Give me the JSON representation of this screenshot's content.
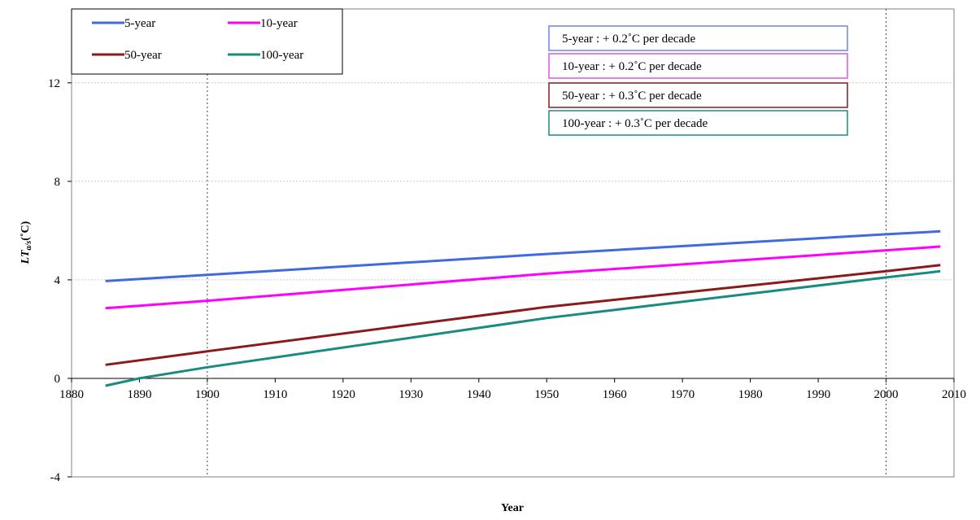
{
  "chart_data": {
    "type": "line",
    "title": "",
    "xlabel": "Year",
    "ylabel_main": "LT",
    "ylabel_sub": "a/s",
    "ylabel_unit": "(˚C)",
    "xlim": [
      1880,
      2010
    ],
    "ylim": [
      -4,
      15
    ],
    "x_ticks": [
      1880,
      1890,
      1900,
      1910,
      1920,
      1930,
      1940,
      1950,
      1960,
      1970,
      1980,
      1990,
      2000,
      2010
    ],
    "x_tick_labels": [
      "1880",
      "1890",
      "1900",
      "1910",
      "1920",
      "1930",
      "1940",
      "1950",
      "1960",
      "1970",
      "1980",
      "1990",
      "2000",
      "2010"
    ],
    "y_ticks": [
      -4,
      0,
      4,
      8,
      12
    ],
    "y_tick_labels": [
      "-4",
      "0",
      "4",
      "8",
      "12"
    ],
    "x_reference_lines": [
      1900,
      2000
    ],
    "y_gridlines": [
      4,
      8,
      12
    ],
    "legend_position": "top-left",
    "series": [
      {
        "name": "5-year",
        "color": "#4169e1",
        "x": [
          1885,
          1900,
          1950,
          2000,
          2008
        ],
        "y": [
          3.95,
          4.2,
          5.05,
          5.85,
          5.97
        ]
      },
      {
        "name": "10-year",
        "color": "#ff00ff",
        "x": [
          1885,
          1900,
          1950,
          2000,
          2008
        ],
        "y": [
          2.85,
          3.15,
          4.25,
          5.2,
          5.35
        ]
      },
      {
        "name": "50-year",
        "color": "#8b1a1a",
        "x": [
          1885,
          1900,
          1950,
          2000,
          2008
        ],
        "y": [
          0.55,
          1.1,
          2.9,
          4.35,
          4.6
        ]
      },
      {
        "name": "100-year",
        "color": "#1a8b80",
        "x": [
          1885,
          1890,
          1900,
          1950,
          2000,
          2008
        ],
        "y": [
          -0.3,
          0.0,
          0.45,
          2.45,
          4.1,
          4.35
        ]
      }
    ],
    "annotations": [
      {
        "text": "5-year : + 0.2˚C per decade",
        "color": "#6a86e0"
      },
      {
        "text": "10-year : + 0.2˚C per decade",
        "color": "#e055e0"
      },
      {
        "text": "50-year : + 0.3˚C per decade",
        "color": "#8b1a1a"
      },
      {
        "text": "100-year : + 0.3˚C per decade",
        "color": "#1a8b80"
      }
    ]
  }
}
